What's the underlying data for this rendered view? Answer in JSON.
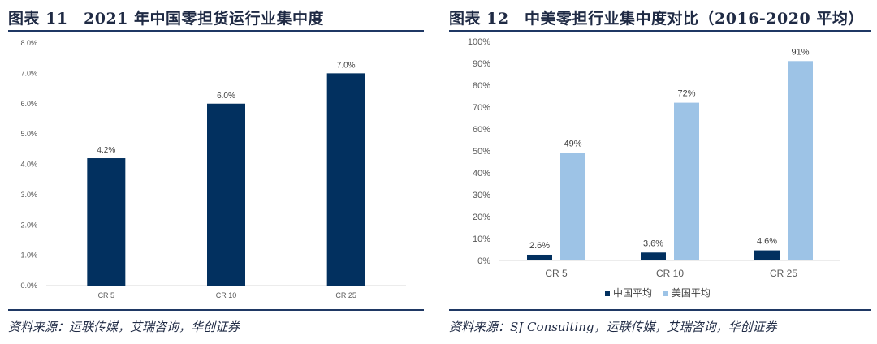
{
  "figures": [
    {
      "title": "图表 11　2021 年中国零担货运行业集中度",
      "source": "资料来源：运联传媒，艾瑞咨询，华创证券"
    },
    {
      "title": "图表 12　中美零担行业集中度对比（2016-2020 平均）",
      "source": "资料来源：SJ Consulting，运联传媒，艾瑞咨询，华创证券"
    }
  ],
  "colors": {
    "dark_navy": "#02305F",
    "light_blue": "#9DC3E6",
    "rule": "#1F3864"
  },
  "chart_data": [
    {
      "type": "bar",
      "categories": [
        "CR 5",
        "CR 10",
        "CR 25"
      ],
      "values": [
        4.2,
        6.0,
        7.0
      ],
      "value_labels": [
        "4.2%",
        "6.0%",
        "7.0%"
      ],
      "ylim": [
        0,
        8
      ],
      "yticks": [
        "0.0%",
        "1.0%",
        "2.0%",
        "3.0%",
        "4.0%",
        "5.0%",
        "6.0%",
        "7.0%",
        "8.0%"
      ],
      "title": "",
      "xlabel": "",
      "ylabel": "",
      "grid": false,
      "legend": "none"
    },
    {
      "type": "bar",
      "categories": [
        "CR 5",
        "CR 10",
        "CR 25"
      ],
      "series": [
        {
          "name": "中国平均",
          "values": [
            2.6,
            3.6,
            4.6
          ],
          "labels": [
            "2.6%",
            "3.6%",
            "4.6%"
          ],
          "color": "#02305F"
        },
        {
          "name": "美国平均",
          "values": [
            49,
            72,
            91
          ],
          "labels": [
            "49%",
            "72%",
            "91%"
          ],
          "color": "#9DC3E6"
        }
      ],
      "ylim": [
        0,
        100
      ],
      "yticks": [
        "0%",
        "10%",
        "20%",
        "30%",
        "40%",
        "50%",
        "60%",
        "70%",
        "80%",
        "90%",
        "100%"
      ],
      "title": "",
      "xlabel": "",
      "ylabel": "",
      "grid": false,
      "legend": "bottom"
    }
  ]
}
